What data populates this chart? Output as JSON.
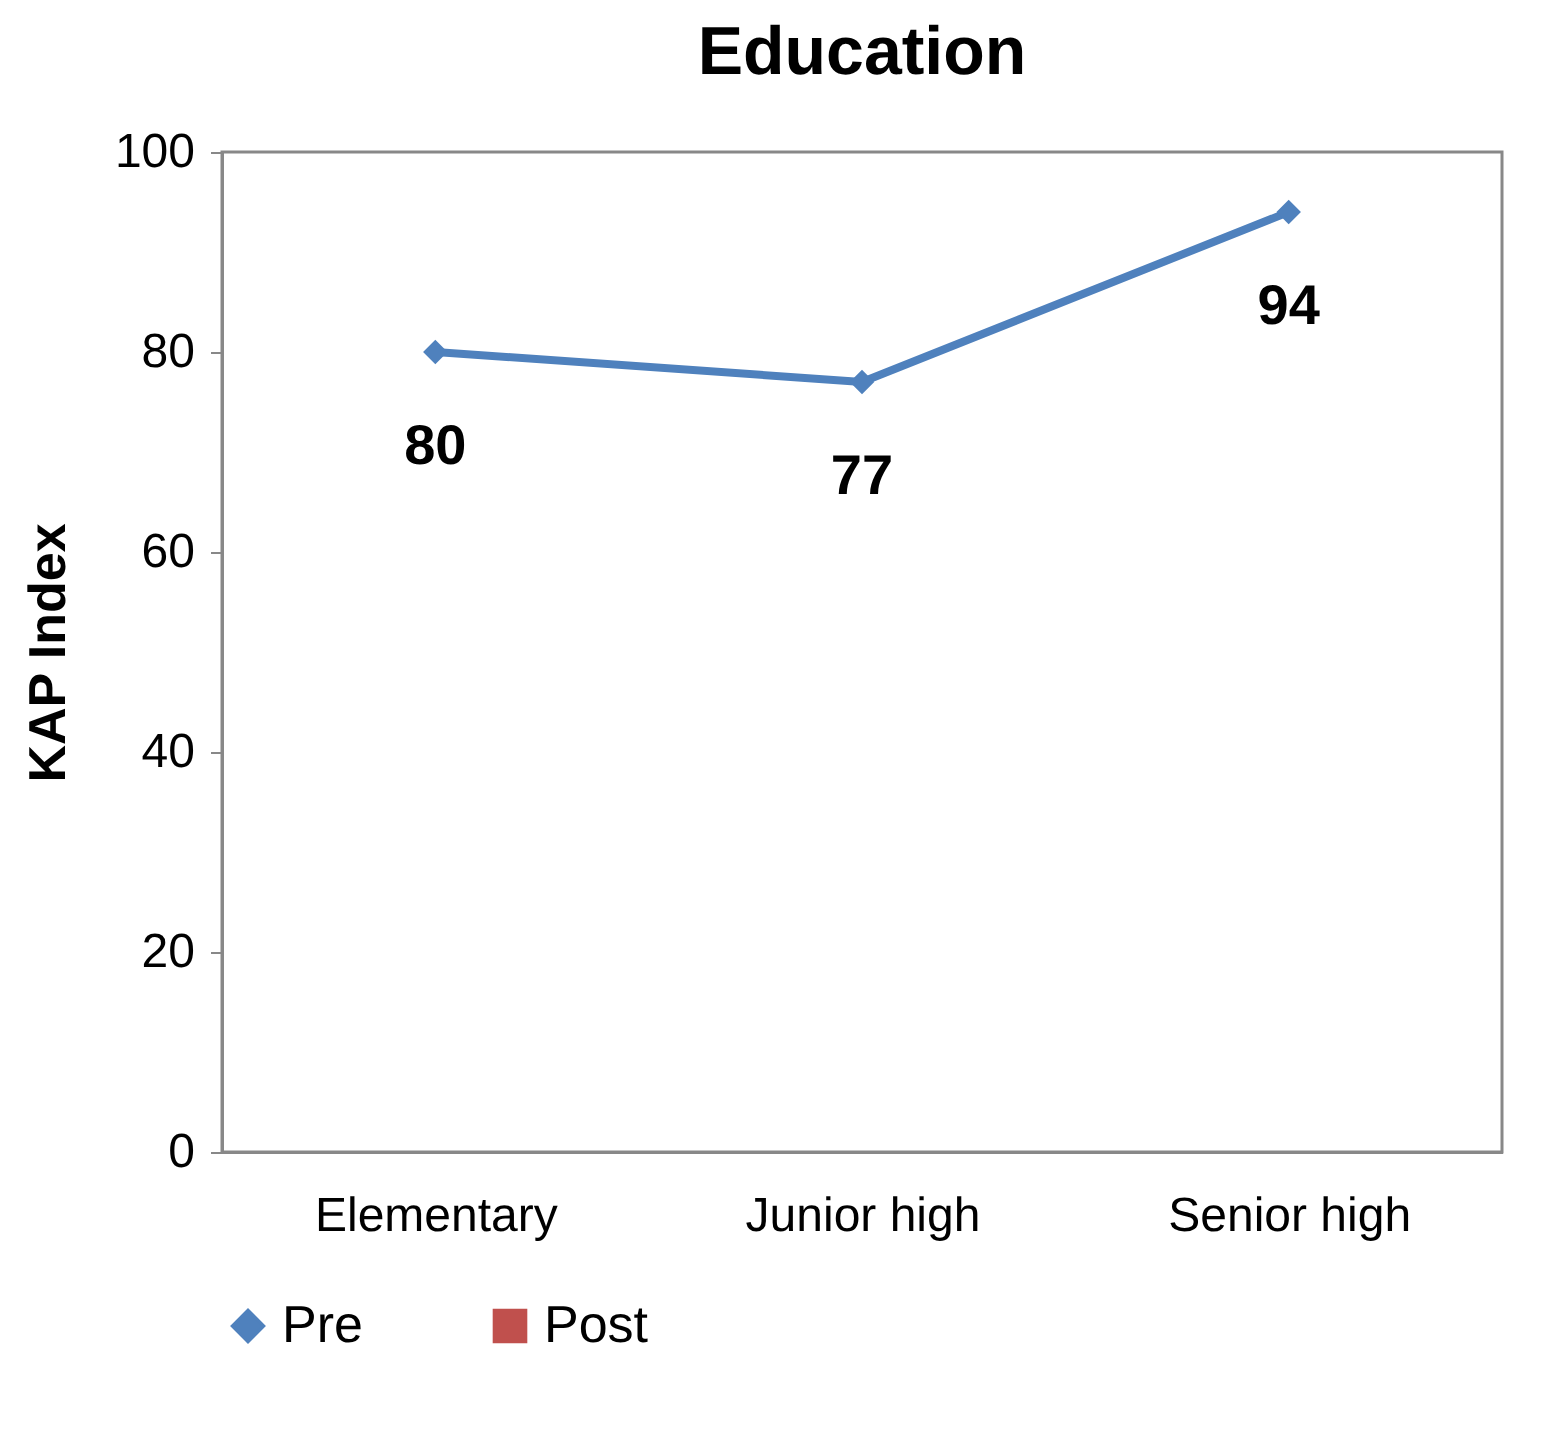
{
  "chart_data": {
    "type": "line",
    "title": "Education",
    "ylabel": "KAP Index",
    "categories": [
      "Elementary",
      "Junior high",
      "Senior high"
    ],
    "series": [
      {
        "name": "Pre",
        "color": "#4f81bd",
        "marker": "diamond",
        "values": [
          80,
          77,
          94
        ]
      },
      {
        "name": "Post",
        "color": "#c0504d",
        "marker": "square",
        "values": [
          null,
          null,
          null
        ]
      }
    ],
    "ylim": [
      0,
      100
    ],
    "yticks": [
      0,
      20,
      40,
      60,
      80,
      100
    ],
    "grid": false,
    "legend": "bottom",
    "data_labels": true,
    "line_style": "solid"
  }
}
